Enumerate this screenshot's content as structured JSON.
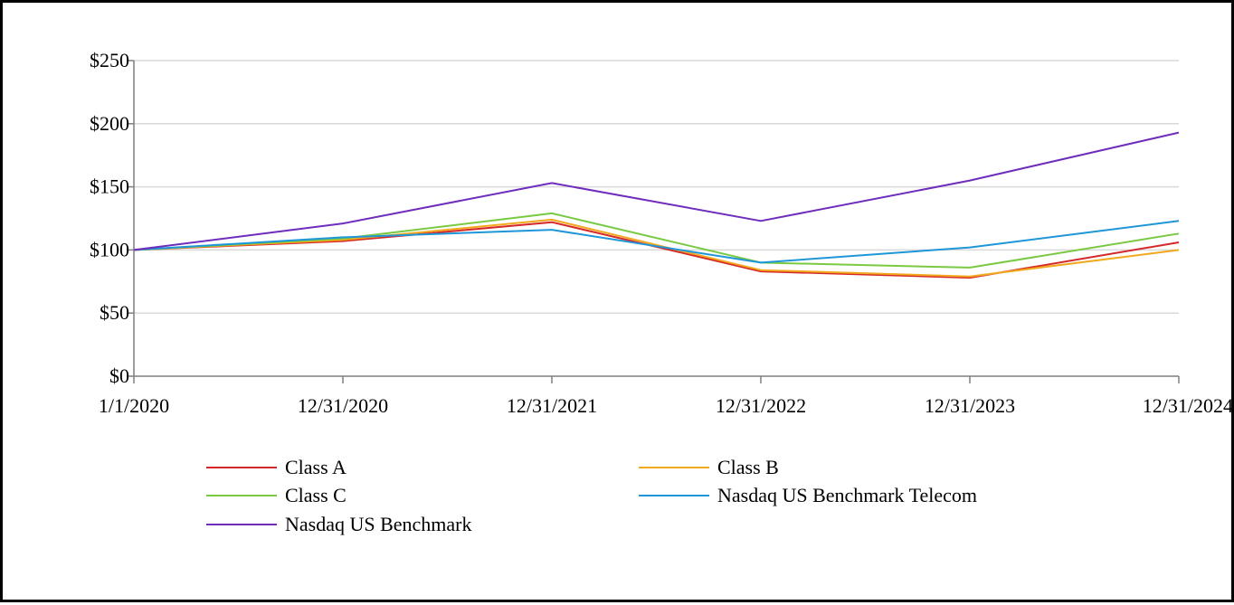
{
  "chart_data": {
    "type": "line",
    "title": "",
    "xlabel": "",
    "ylabel": "",
    "x": [
      "1/1/2020",
      "12/31/2020",
      "12/31/2021",
      "12/31/2022",
      "12/31/2023",
      "12/31/2024"
    ],
    "ylim": [
      0,
      250
    ],
    "yticks": [
      0,
      50,
      100,
      150,
      200,
      250
    ],
    "ytick_labels": [
      "$0",
      "$50",
      "$100",
      "$150",
      "$200",
      "$250"
    ],
    "grid": true,
    "legend_position": "bottom",
    "series": [
      {
        "name": "Class A",
        "color": "#d62728",
        "values": [
          100,
          107,
          122,
          83,
          78,
          106
        ]
      },
      {
        "name": "Class B",
        "color": "#f2a81d",
        "values": [
          100,
          108,
          124,
          84,
          79,
          100
        ]
      },
      {
        "name": "Class C",
        "color": "#7ac943",
        "values": [
          100,
          109,
          129,
          90,
          86,
          113
        ]
      },
      {
        "name": "Nasdaq US Benchmark Telecom",
        "color": "#1f96d8",
        "values": [
          100,
          110,
          116,
          90,
          102,
          123
        ]
      },
      {
        "name": "Nasdaq US Benchmark",
        "color": "#6f2dbd",
        "values": [
          100,
          121,
          153,
          123,
          155,
          193
        ]
      }
    ]
  }
}
